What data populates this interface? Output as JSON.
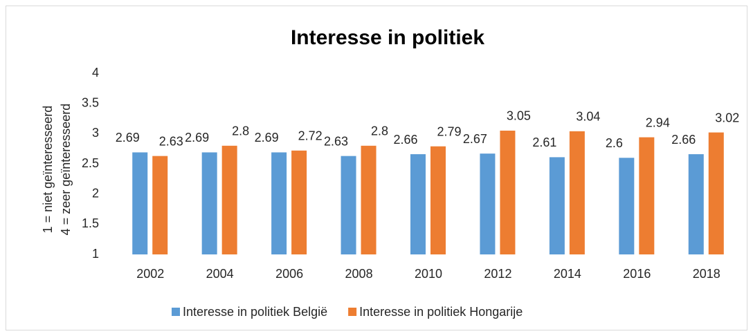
{
  "chart_data": {
    "type": "bar",
    "title": "Interesse in politiek",
    "ylabel": [
      "1 = niet geïnteresseerd",
      "4 = zeer geïnteresseerd"
    ],
    "categories": [
      "2002",
      "2004",
      "2006",
      "2008",
      "2010",
      "2012",
      "2014",
      "2016",
      "2018"
    ],
    "series": [
      {
        "name": "Interesse in politiek België",
        "color": "#5b9bd5",
        "values": [
          2.69,
          2.69,
          2.69,
          2.63,
          2.66,
          2.67,
          2.61,
          2.6,
          2.66
        ]
      },
      {
        "name": "Interesse in politiek Hongarije",
        "color": "#ed7d31",
        "values": [
          2.63,
          2.8,
          2.72,
          2.8,
          2.79,
          3.05,
          3.04,
          2.94,
          3.02
        ]
      }
    ],
    "ylim": [
      1,
      4
    ],
    "yticks": [
      1,
      1.5,
      2,
      2.5,
      3,
      3.5,
      4
    ],
    "grid": false,
    "legend": "bottom"
  }
}
